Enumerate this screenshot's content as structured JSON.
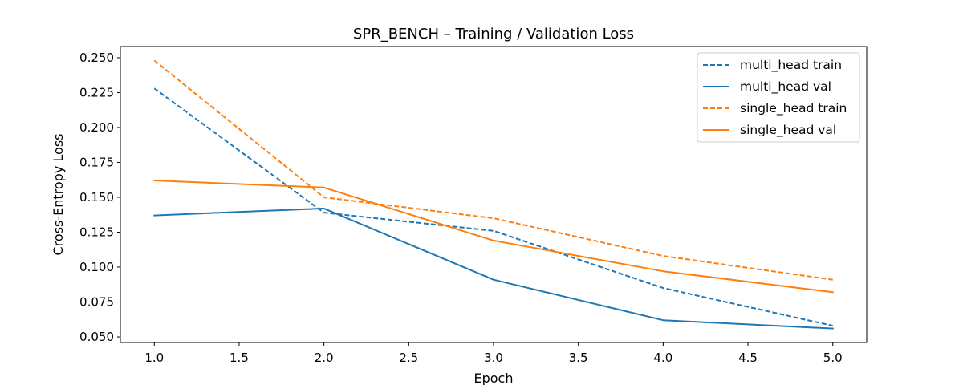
{
  "chart_data": {
    "type": "line",
    "title": "SPR_BENCH – Training / Validation Loss",
    "xlabel": "Epoch",
    "ylabel": "Cross-Entropy Loss",
    "xlim": [
      0.8,
      5.2
    ],
    "ylim": [
      0.046,
      0.258
    ],
    "x_ticks": [
      "1.0",
      "1.5",
      "2.0",
      "2.5",
      "3.0",
      "3.5",
      "4.0",
      "4.5",
      "5.0"
    ],
    "y_ticks": [
      "0.050",
      "0.075",
      "0.100",
      "0.125",
      "0.150",
      "0.175",
      "0.200",
      "0.225",
      "0.250"
    ],
    "grid": false,
    "legend_position": "top-right",
    "x": [
      1,
      2,
      3,
      4,
      5
    ],
    "series": [
      {
        "name": "multi_head train",
        "color": "#1f77b4",
        "style": "dashed",
        "values": [
          0.228,
          0.139,
          0.126,
          0.085,
          0.058
        ]
      },
      {
        "name": "multi_head val",
        "color": "#1f77b4",
        "style": "solid",
        "values": [
          0.137,
          0.142,
          0.091,
          0.062,
          0.056
        ]
      },
      {
        "name": "single_head train",
        "color": "#ff7f0e",
        "style": "dashed",
        "values": [
          0.248,
          0.15,
          0.135,
          0.108,
          0.091
        ]
      },
      {
        "name": "single_head val",
        "color": "#ff7f0e",
        "style": "solid",
        "values": [
          0.162,
          0.157,
          0.119,
          0.097,
          0.082
        ]
      }
    ]
  }
}
